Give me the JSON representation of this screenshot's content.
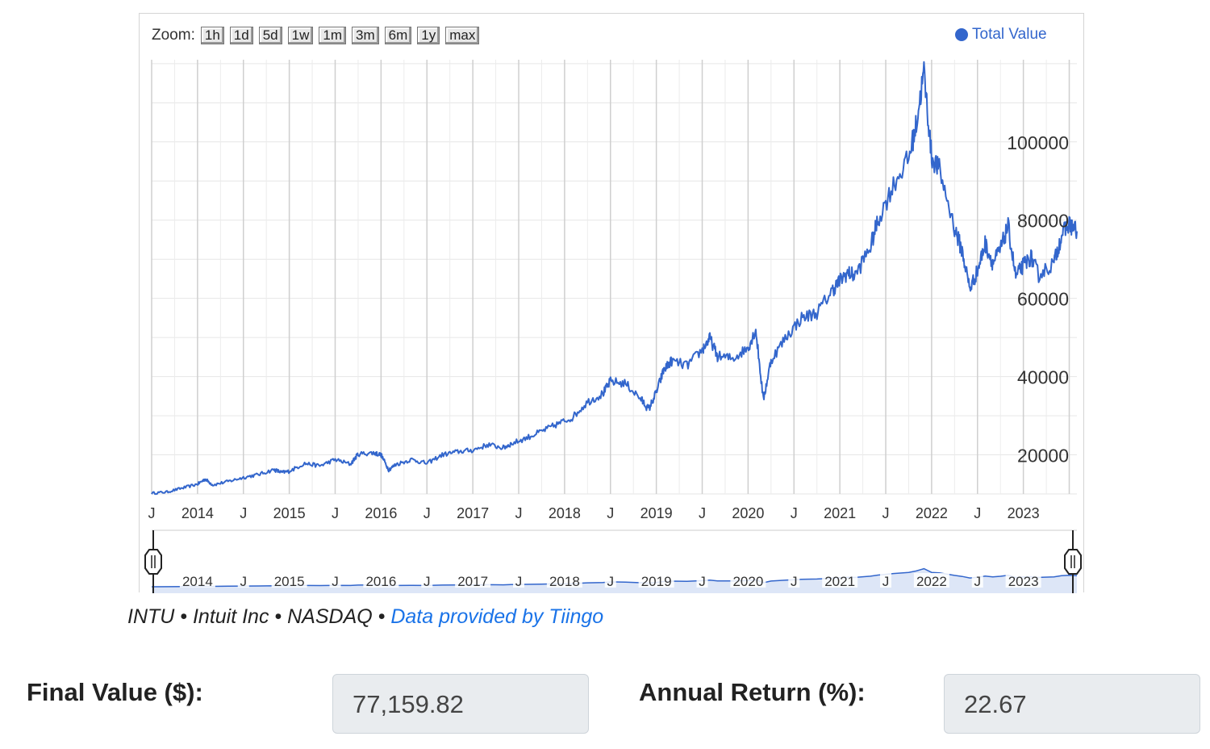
{
  "toolbar": {
    "zoom_label": "Zoom:",
    "zoom_buttons": [
      "1h",
      "1d",
      "5d",
      "1w",
      "1m",
      "3m",
      "6m",
      "1y",
      "max"
    ]
  },
  "legend": {
    "series_name": "Total Value",
    "color": "#3366cc"
  },
  "chart_data": {
    "type": "line",
    "series": [
      {
        "name": "Total Value",
        "color": "#3366cc",
        "points": [
          [
            "2013-07-01",
            10200
          ],
          [
            "2013-09-01",
            10500
          ],
          [
            "2013-11-01",
            11500
          ],
          [
            "2014-01-01",
            12500
          ],
          [
            "2014-02-01",
            13800
          ],
          [
            "2014-03-01",
            12300
          ],
          [
            "2014-05-01",
            13200
          ],
          [
            "2014-07-01",
            14200
          ],
          [
            "2014-09-01",
            15000
          ],
          [
            "2014-11-01",
            16200
          ],
          [
            "2014-12-01",
            15500
          ],
          [
            "2015-01-01",
            15800
          ],
          [
            "2015-03-01",
            17800
          ],
          [
            "2015-05-01",
            17200
          ],
          [
            "2015-07-01",
            18800
          ],
          [
            "2015-09-01",
            17600
          ],
          [
            "2015-10-01",
            20200
          ],
          [
            "2015-12-01",
            20500
          ],
          [
            "2016-01-01",
            20000
          ],
          [
            "2016-02-01",
            16200
          ],
          [
            "2016-03-01",
            17600
          ],
          [
            "2016-05-01",
            18800
          ],
          [
            "2016-07-01",
            17800
          ],
          [
            "2016-09-01",
            20000
          ],
          [
            "2016-11-01",
            20800
          ],
          [
            "2017-01-01",
            21200
          ],
          [
            "2017-03-01",
            22600
          ],
          [
            "2017-05-01",
            21800
          ],
          [
            "2017-06-01",
            22800
          ],
          [
            "2017-08-01",
            24300
          ],
          [
            "2017-10-01",
            26000
          ],
          [
            "2017-12-01",
            27800
          ],
          [
            "2018-02-01",
            29500
          ],
          [
            "2018-04-01",
            33500
          ],
          [
            "2018-06-01",
            35600
          ],
          [
            "2018-07-01",
            38800
          ],
          [
            "2018-09-01",
            38200
          ],
          [
            "2018-11-01",
            34200
          ],
          [
            "2018-12-01",
            31600
          ],
          [
            "2019-01-01",
            36000
          ],
          [
            "2019-02-01",
            41800
          ],
          [
            "2019-03-01",
            44000
          ],
          [
            "2019-05-01",
            42800
          ],
          [
            "2019-07-01",
            46800
          ],
          [
            "2019-08-01",
            49800
          ],
          [
            "2019-09-01",
            45200
          ],
          [
            "2019-11-01",
            44600
          ],
          [
            "2020-01-01",
            47400
          ],
          [
            "2020-02-01",
            52000
          ],
          [
            "2020-03-01",
            34000
          ],
          [
            "2020-04-01",
            44200
          ],
          [
            "2020-06-01",
            50200
          ],
          [
            "2020-08-01",
            55000
          ],
          [
            "2020-10-01",
            56300
          ],
          [
            "2020-12-01",
            62000
          ],
          [
            "2021-01-01",
            64500
          ],
          [
            "2021-02-01",
            66500
          ],
          [
            "2021-03-01",
            65800
          ],
          [
            "2021-05-01",
            73200
          ],
          [
            "2021-06-01",
            80000
          ],
          [
            "2021-08-01",
            89000
          ],
          [
            "2021-10-01",
            95800
          ],
          [
            "2021-11-01",
            104500
          ],
          [
            "2021-12-01",
            118000
          ],
          [
            "2022-01-01",
            96000
          ],
          [
            "2022-02-01",
            93000
          ],
          [
            "2022-04-01",
            78000
          ],
          [
            "2022-05-01",
            72000
          ],
          [
            "2022-06-01",
            62500
          ],
          [
            "2022-07-01",
            67000
          ],
          [
            "2022-08-01",
            74000
          ],
          [
            "2022-09-01",
            69000
          ],
          [
            "2022-10-01",
            72500
          ],
          [
            "2022-11-01",
            78500
          ],
          [
            "2022-12-01",
            65500
          ],
          [
            "2023-01-01",
            68500
          ],
          [
            "2023-02-01",
            70500
          ],
          [
            "2023-03-01",
            66000
          ],
          [
            "2023-05-01",
            69000
          ],
          [
            "2023-06-01",
            76200
          ],
          [
            "2023-07-01",
            79000
          ],
          [
            "2023-08-01",
            77160
          ]
        ]
      }
    ],
    "y_ticks": [
      "20000",
      "40000",
      "60000",
      "80000",
      "100000"
    ],
    "x_tick_labels": [
      "J",
      "2014",
      "J",
      "2015",
      "J",
      "2016",
      "J",
      "2017",
      "J",
      "2018",
      "J",
      "2019",
      "J",
      "2020",
      "J",
      "2021",
      "J",
      "2022",
      "J",
      "2023"
    ],
    "navigator_labels": [
      "2014",
      "J",
      "2015",
      "J",
      "2016",
      "J",
      "2017",
      "J",
      "2018",
      "J",
      "2019",
      "J",
      "2020",
      "J",
      "2021",
      "J",
      "2022",
      "J",
      "2023"
    ],
    "ylim": [
      10000,
      121000
    ],
    "xlim": [
      "2013-07-01",
      "2023-08-01"
    ],
    "grid": true,
    "legend_position": "top-right"
  },
  "caption": {
    "text": "INTU • Intuit Inc • NASDAQ • ",
    "link": "Data provided by Tiingo"
  },
  "results": {
    "final_value_label": "Final Value ($):",
    "final_value": "77,159.82",
    "annual_return_label": "Annual Return (%):",
    "annual_return": "22.67"
  }
}
